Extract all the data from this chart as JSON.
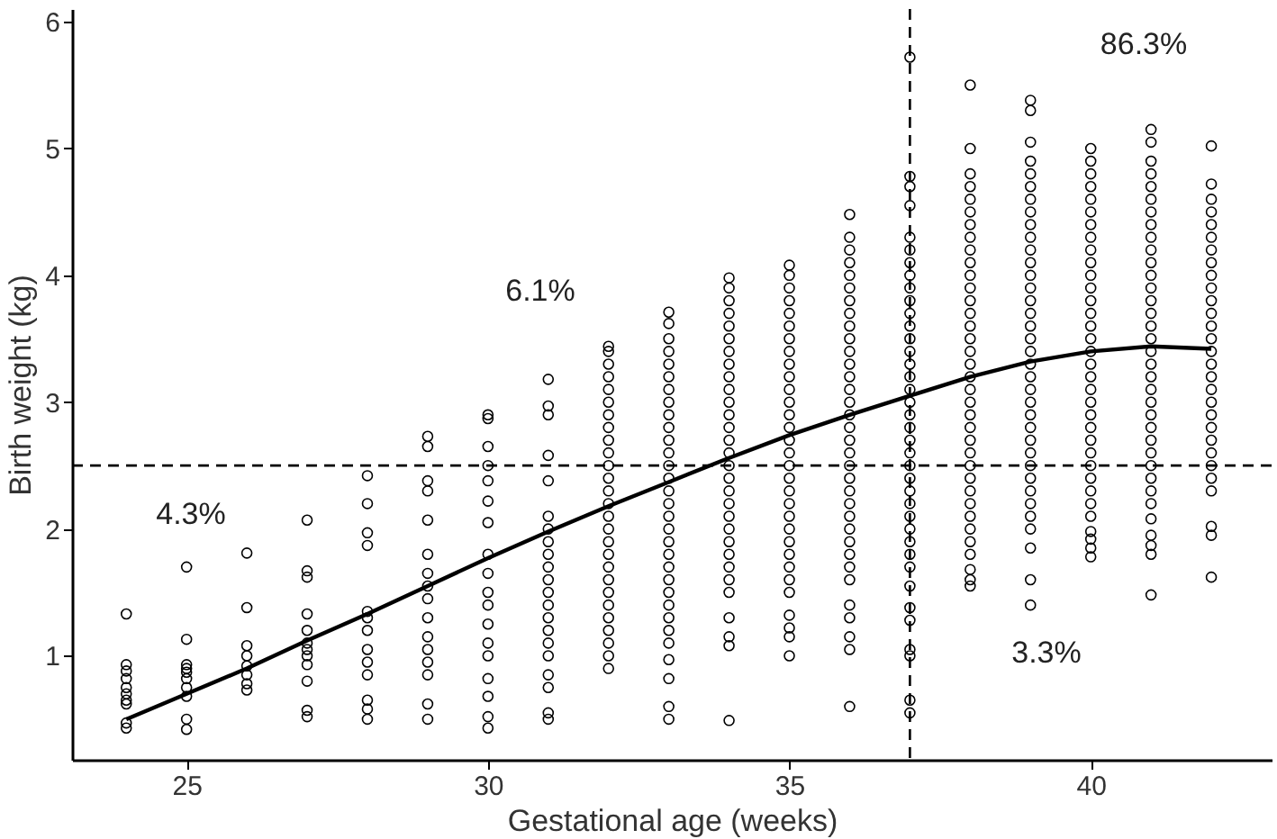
{
  "chart_data": {
    "type": "scatter",
    "xlabel": "Gestational age (weeks)",
    "ylabel": "Birth weight (kg)",
    "xlim": [
      23.1,
      43
    ],
    "ylim": [
      0.18,
      6.1
    ],
    "xticks": [
      25,
      30,
      35,
      40
    ],
    "yticks": [
      1,
      2,
      3,
      4,
      5,
      6
    ],
    "grid": false,
    "marker": "circle",
    "series": [
      {
        "type": "scatter",
        "color": "#000000",
        "x": [
          24,
          24,
          24,
          24,
          24,
          24,
          24,
          24,
          24,
          24
        ],
        "values": [
          0.43,
          0.47,
          0.62,
          0.65,
          0.7,
          0.75,
          0.82,
          0.88,
          0.93,
          1.33
        ]
      },
      {
        "type": "scatter",
        "color": "#000000",
        "x": [
          25,
          25,
          25,
          25,
          25,
          25,
          25,
          25,
          25,
          25
        ],
        "values": [
          0.42,
          0.5,
          0.68,
          0.75,
          0.82,
          0.87,
          0.9,
          0.93,
          1.13,
          1.7
        ]
      },
      {
        "type": "scatter",
        "color": "#000000",
        "x": [
          26,
          26,
          26,
          26,
          26,
          26,
          26,
          26
        ],
        "values": [
          0.73,
          0.78,
          0.85,
          0.92,
          1.0,
          1.08,
          1.38,
          1.81
        ]
      },
      {
        "type": "scatter",
        "color": "#000000",
        "x": [
          27,
          27,
          27,
          27,
          27,
          27,
          27,
          27,
          27,
          27,
          27,
          27
        ],
        "values": [
          0.52,
          0.57,
          0.8,
          0.93,
          1.0,
          1.05,
          1.1,
          1.2,
          1.33,
          1.62,
          1.67,
          2.07
        ]
      },
      {
        "type": "scatter",
        "color": "#000000",
        "x": [
          28,
          28,
          28,
          28,
          28,
          28,
          28,
          28,
          28,
          28,
          28,
          28,
          28
        ],
        "values": [
          0.5,
          0.58,
          0.65,
          0.85,
          0.95,
          1.05,
          1.2,
          1.3,
          1.35,
          1.87,
          1.97,
          2.2,
          2.42
        ]
      },
      {
        "type": "scatter",
        "color": "#000000",
        "x": [
          29,
          29,
          29,
          29,
          29,
          29,
          29,
          29,
          29,
          29,
          29,
          29,
          29,
          29,
          29,
          29
        ],
        "values": [
          0.5,
          0.62,
          0.85,
          0.95,
          1.05,
          1.15,
          1.3,
          1.45,
          1.55,
          1.65,
          1.8,
          2.07,
          2.3,
          2.38,
          2.65,
          2.73
        ]
      },
      {
        "type": "scatter",
        "color": "#000000",
        "x": [
          30,
          30,
          30,
          30,
          30,
          30,
          30,
          30,
          30,
          30,
          30,
          30,
          30,
          30,
          30,
          30,
          30,
          30
        ],
        "values": [
          0.43,
          0.52,
          0.68,
          0.82,
          1.0,
          1.1,
          1.25,
          1.4,
          1.5,
          1.65,
          1.8,
          2.05,
          2.22,
          2.38,
          2.5,
          2.65,
          2.87,
          2.9
        ]
      },
      {
        "type": "scatter",
        "color": "#000000",
        "x": [
          31,
          31,
          31,
          31,
          31,
          31,
          31,
          31,
          31,
          31,
          31,
          31,
          31,
          31,
          31,
          31,
          31,
          31,
          31,
          31,
          31
        ],
        "values": [
          0.5,
          0.55,
          0.75,
          0.85,
          1.0,
          1.1,
          1.2,
          1.3,
          1.4,
          1.5,
          1.6,
          1.7,
          1.8,
          1.9,
          2.0,
          2.1,
          2.38,
          2.58,
          2.9,
          2.97,
          3.18
        ]
      },
      {
        "type": "scatter",
        "color": "#000000",
        "x": [
          32,
          32,
          32,
          32,
          32,
          32,
          32,
          32,
          32,
          32,
          32,
          32,
          32,
          32,
          32,
          32,
          32,
          32,
          32,
          32,
          32,
          32,
          32,
          32,
          32,
          32,
          32
        ],
        "values": [
          0.9,
          1.0,
          1.1,
          1.2,
          1.3,
          1.4,
          1.5,
          1.6,
          1.7,
          1.8,
          1.9,
          2.0,
          2.1,
          2.2,
          2.3,
          2.4,
          2.5,
          2.6,
          2.7,
          2.8,
          2.9,
          3.0,
          3.1,
          3.2,
          3.3,
          3.4,
          3.44
        ]
      },
      {
        "type": "scatter",
        "color": "#000000",
        "x": [
          33,
          33,
          33,
          33,
          33,
          33,
          33,
          33,
          33,
          33,
          33,
          33,
          33,
          33,
          33,
          33,
          33,
          33,
          33,
          33,
          33,
          33,
          33,
          33,
          33,
          33,
          33,
          33,
          33,
          33,
          33
        ],
        "values": [
          0.5,
          0.6,
          0.82,
          0.97,
          1.1,
          1.2,
          1.3,
          1.4,
          1.5,
          1.6,
          1.7,
          1.8,
          1.9,
          2.0,
          2.1,
          2.2,
          2.3,
          2.4,
          2.5,
          2.6,
          2.7,
          2.8,
          2.9,
          3.0,
          3.1,
          3.2,
          3.3,
          3.4,
          3.5,
          3.62,
          3.71
        ]
      },
      {
        "type": "scatter",
        "color": "#000000",
        "x": [
          34,
          34,
          34,
          34,
          34,
          34,
          34,
          34,
          34,
          34,
          34,
          34,
          34,
          34,
          34,
          34,
          34,
          34,
          34,
          34,
          34,
          34,
          34,
          34,
          34,
          34,
          34,
          34,
          34,
          34
        ],
        "values": [
          0.49,
          1.08,
          1.15,
          1.3,
          1.5,
          1.6,
          1.7,
          1.8,
          1.9,
          2.0,
          2.1,
          2.2,
          2.3,
          2.4,
          2.5,
          2.6,
          2.7,
          2.8,
          2.9,
          3.0,
          3.1,
          3.2,
          3.3,
          3.4,
          3.5,
          3.6,
          3.7,
          3.8,
          3.9,
          3.98
        ]
      },
      {
        "type": "scatter",
        "color": "#000000",
        "x": [
          35,
          35,
          35,
          35,
          35,
          35,
          35,
          35,
          35,
          35,
          35,
          35,
          35,
          35,
          35,
          35,
          35,
          35,
          35,
          35,
          35,
          35,
          35,
          35,
          35,
          35,
          35,
          35,
          35,
          35,
          35
        ],
        "values": [
          1.0,
          1.15,
          1.22,
          1.32,
          1.5,
          1.6,
          1.7,
          1.8,
          1.9,
          2.0,
          2.1,
          2.2,
          2.3,
          2.4,
          2.5,
          2.6,
          2.7,
          2.8,
          2.9,
          3.0,
          3.1,
          3.2,
          3.3,
          3.4,
          3.5,
          3.6,
          3.7,
          3.8,
          3.9,
          4.0,
          4.08
        ]
      },
      {
        "type": "scatter",
        "color": "#000000",
        "x": [
          36,
          36,
          36,
          36,
          36,
          36,
          36,
          36,
          36,
          36,
          36,
          36,
          36,
          36,
          36,
          36,
          36,
          36,
          36,
          36,
          36,
          36,
          36,
          36,
          36,
          36,
          36,
          36,
          36,
          36,
          36,
          36,
          36,
          36
        ],
        "values": [
          0.6,
          1.05,
          1.15,
          1.3,
          1.4,
          1.6,
          1.7,
          1.8,
          1.9,
          2.0,
          2.1,
          2.2,
          2.3,
          2.4,
          2.5,
          2.6,
          2.7,
          2.8,
          2.9,
          3.0,
          3.1,
          3.2,
          3.3,
          3.4,
          3.5,
          3.6,
          3.7,
          3.8,
          3.9,
          4.0,
          4.1,
          4.2,
          4.3,
          4.48
        ]
      },
      {
        "type": "scatter",
        "color": "#000000",
        "x": [
          37,
          37,
          37,
          37,
          37,
          37,
          37,
          37,
          37,
          37,
          37,
          37,
          37,
          37,
          37,
          37,
          37,
          37,
          37,
          37,
          37,
          37,
          37,
          37,
          37,
          37,
          37,
          37,
          37,
          37,
          37,
          37,
          37,
          37,
          37,
          37,
          37,
          37
        ],
        "values": [
          0.55,
          0.65,
          1.0,
          1.05,
          1.28,
          1.38,
          1.55,
          1.7,
          1.8,
          1.9,
          2.0,
          2.1,
          2.2,
          2.3,
          2.4,
          2.5,
          2.6,
          2.7,
          2.8,
          2.9,
          3.0,
          3.1,
          3.2,
          3.3,
          3.4,
          3.5,
          3.6,
          3.7,
          3.8,
          3.9,
          4.0,
          4.1,
          4.2,
          4.3,
          4.55,
          4.7,
          4.78,
          5.72
        ]
      },
      {
        "type": "scatter",
        "color": "#000000",
        "x": [
          38,
          38,
          38,
          38,
          38,
          38,
          38,
          38,
          38,
          38,
          38,
          38,
          38,
          38,
          38,
          38,
          38,
          38,
          38,
          38,
          38,
          38,
          38,
          38,
          38,
          38,
          38,
          38,
          38,
          38,
          38,
          38,
          38,
          38,
          38,
          38
        ],
        "values": [
          1.55,
          1.6,
          1.68,
          1.8,
          1.9,
          2.0,
          2.1,
          2.2,
          2.3,
          2.4,
          2.5,
          2.6,
          2.7,
          2.8,
          2.9,
          3.0,
          3.1,
          3.2,
          3.3,
          3.4,
          3.5,
          3.6,
          3.7,
          3.8,
          3.9,
          4.0,
          4.1,
          4.2,
          4.3,
          4.4,
          4.5,
          4.6,
          4.7,
          4.8,
          5.0,
          5.5
        ]
      },
      {
        "type": "scatter",
        "color": "#000000",
        "x": [
          39,
          39,
          39,
          39,
          39,
          39,
          39,
          39,
          39,
          39,
          39,
          39,
          39,
          39,
          39,
          39,
          39,
          39,
          39,
          39,
          39,
          39,
          39,
          39,
          39,
          39,
          39,
          39,
          39,
          39,
          39,
          39,
          39,
          39,
          39,
          39
        ],
        "values": [
          1.4,
          1.6,
          1.85,
          2.0,
          2.1,
          2.2,
          2.3,
          2.4,
          2.5,
          2.6,
          2.7,
          2.8,
          2.9,
          3.0,
          3.1,
          3.2,
          3.3,
          3.4,
          3.5,
          3.6,
          3.7,
          3.8,
          3.9,
          4.0,
          4.1,
          4.2,
          4.3,
          4.4,
          4.5,
          4.6,
          4.7,
          4.8,
          4.9,
          5.05,
          5.3,
          5.38
        ]
      },
      {
        "type": "scatter",
        "color": "#000000",
        "x": [
          40,
          40,
          40,
          40,
          40,
          40,
          40,
          40,
          40,
          40,
          40,
          40,
          40,
          40,
          40,
          40,
          40,
          40,
          40,
          40,
          40,
          40,
          40,
          40,
          40,
          40,
          40,
          40,
          40,
          40,
          40,
          40,
          40,
          40
        ],
        "values": [
          1.78,
          1.85,
          1.92,
          1.98,
          2.1,
          2.2,
          2.3,
          2.4,
          2.5,
          2.6,
          2.7,
          2.8,
          2.9,
          3.0,
          3.1,
          3.2,
          3.3,
          3.4,
          3.5,
          3.6,
          3.7,
          3.8,
          3.9,
          4.0,
          4.1,
          4.2,
          4.3,
          4.4,
          4.5,
          4.6,
          4.7,
          4.8,
          4.9,
          5.0
        ]
      },
      {
        "type": "scatter",
        "color": "#000000",
        "x": [
          41,
          41,
          41,
          41,
          41,
          41,
          41,
          41,
          41,
          41,
          41,
          41,
          41,
          41,
          41,
          41,
          41,
          41,
          41,
          41,
          41,
          41,
          41,
          41,
          41,
          41,
          41,
          41,
          41,
          41,
          41,
          41,
          41,
          41,
          41
        ],
        "values": [
          1.48,
          1.8,
          1.87,
          1.95,
          2.08,
          2.2,
          2.3,
          2.4,
          2.5,
          2.6,
          2.7,
          2.8,
          2.9,
          3.0,
          3.1,
          3.2,
          3.3,
          3.4,
          3.5,
          3.6,
          3.7,
          3.8,
          3.9,
          4.0,
          4.1,
          4.2,
          4.3,
          4.4,
          4.5,
          4.6,
          4.7,
          4.8,
          4.9,
          5.05,
          5.15
        ]
      },
      {
        "type": "scatter",
        "color": "#000000",
        "x": [
          42,
          42,
          42,
          42,
          42,
          42,
          42,
          42,
          42,
          42,
          42,
          42,
          42,
          42,
          42,
          42,
          42,
          42,
          42,
          42,
          42,
          42,
          42,
          42,
          42,
          42,
          42,
          42,
          42
        ],
        "values": [
          1.62,
          1.95,
          2.02,
          2.3,
          2.4,
          2.5,
          2.6,
          2.7,
          2.8,
          2.9,
          3.0,
          3.1,
          3.2,
          3.3,
          3.4,
          3.5,
          3.6,
          3.7,
          3.8,
          3.9,
          4.0,
          4.1,
          4.2,
          4.3,
          4.4,
          4.5,
          4.6,
          4.72,
          5.02
        ]
      },
      {
        "type": "line",
        "color": "#000000",
        "line_style": "solid",
        "marker": "none",
        "x": [
          24,
          25,
          26,
          27,
          28,
          29,
          30,
          31,
          32,
          33,
          34,
          35,
          36,
          37,
          38,
          39,
          40,
          41,
          42
        ],
        "values": [
          0.5,
          0.7,
          0.9,
          1.12,
          1.33,
          1.55,
          1.77,
          1.98,
          2.18,
          2.37,
          2.56,
          2.74,
          2.9,
          3.05,
          3.2,
          3.32,
          3.4,
          3.44,
          3.42
        ]
      }
    ],
    "ref_lines": [
      {
        "axis": "y",
        "value": 2.5,
        "label": null,
        "color": "#000000",
        "line_style": "dashed"
      },
      {
        "axis": "x",
        "value": 37,
        "label": null,
        "color": "#000000",
        "line_style": "dashed"
      }
    ],
    "annotations": [
      "4.3%",
      "6.1%",
      "86.3%",
      "3.3%"
    ]
  }
}
